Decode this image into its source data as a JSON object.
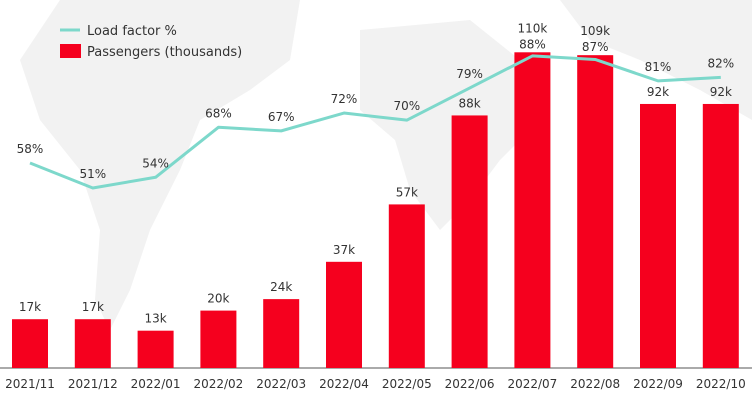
{
  "chart_data": {
    "type": "bar",
    "title": "",
    "xlabel": "",
    "ylabel": "",
    "categories": [
      "2021/11",
      "2021/12",
      "2022/01",
      "2022/02",
      "2022/03",
      "2022/04",
      "2022/05",
      "2022/06",
      "2022/07",
      "2022/08",
      "2022/09",
      "2022/10"
    ],
    "series": [
      {
        "name": "Passengers (thousands)",
        "type": "bar",
        "color": "#f5001e",
        "values": [
          17,
          17,
          13,
          20,
          24,
          37,
          57,
          88,
          110,
          109,
          92,
          92
        ],
        "labels": [
          "17k",
          "17k",
          "13k",
          "20k",
          "24k",
          "37k",
          "57k",
          "88k",
          "110k",
          "109k",
          "92k",
          "92k"
        ]
      },
      {
        "name": "Load factor %",
        "type": "line",
        "color": "#7dd8cb",
        "values": [
          58,
          51,
          54,
          68,
          67,
          72,
          70,
          79,
          88,
          87,
          81,
          82
        ],
        "labels": [
          "58%",
          "51%",
          "54%",
          "68%",
          "67%",
          "72%",
          "70%",
          "79%",
          "88%",
          "87%",
          "81%",
          "82%"
        ]
      }
    ],
    "legend": {
      "position": "top-left",
      "items": [
        "Load factor %",
        "Passengers (thousands)"
      ]
    },
    "grid": false
  }
}
